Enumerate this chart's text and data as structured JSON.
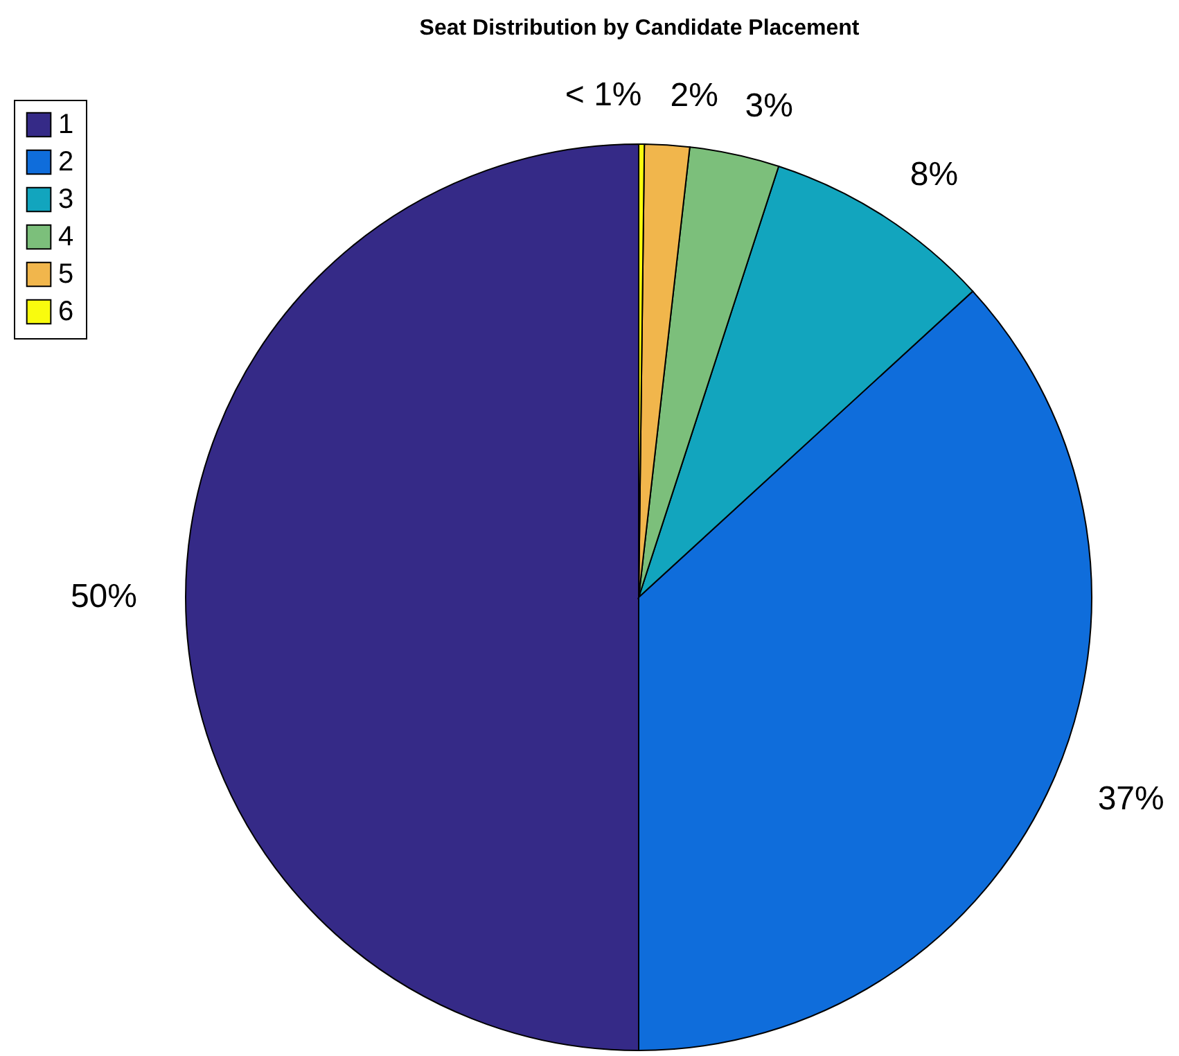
{
  "chart_data": {
    "type": "pie",
    "title": "Seat Distribution by Candidate Placement",
    "categories": [
      "1",
      "2",
      "3",
      "4",
      "5",
      "6"
    ],
    "values": [
      50,
      36.8,
      8.2,
      3.2,
      1.6,
      0.2
    ],
    "value_labels": [
      "50%",
      "37%",
      "8%",
      "3%",
      "2%",
      "< 1%"
    ],
    "colors": [
      "#352a87",
      "#0f6ddb",
      "#12a5be",
      "#7cbf7b",
      "#f1b64c",
      "#f9fb0e"
    ],
    "legend": "top left"
  }
}
